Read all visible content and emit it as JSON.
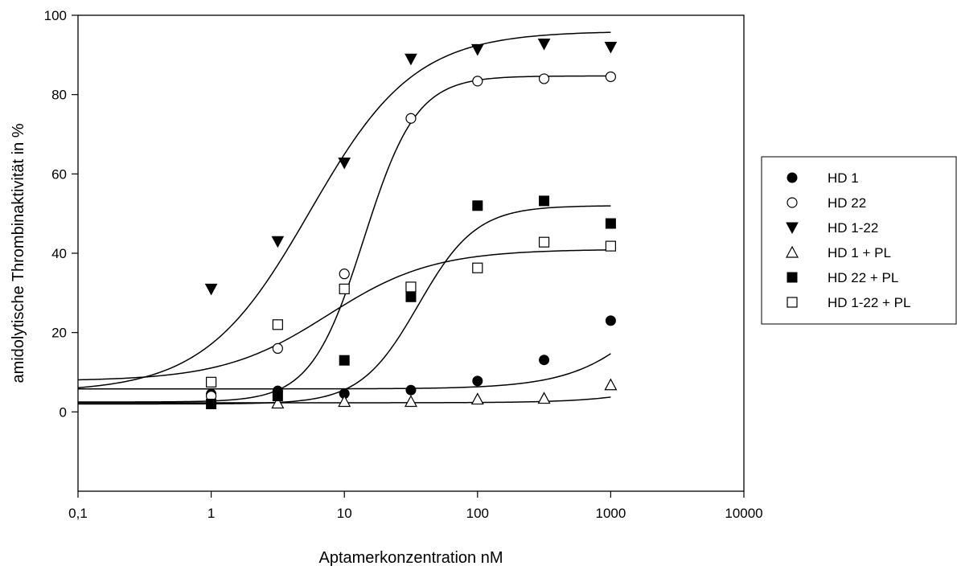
{
  "chart_data": {
    "type": "scatter",
    "xlabel": "Aptamerkonzentration nM",
    "ylabel": "amidolytische Thrombinaktivität in %",
    "xscale": "log",
    "xlim": [
      0.1,
      10000
    ],
    "ylim": [
      -20,
      100
    ],
    "xticks": [
      0.1,
      1,
      10,
      100,
      1000,
      10000
    ],
    "xtick_labels": [
      "0,1",
      "1",
      "10",
      "100",
      "1000",
      "10000"
    ],
    "yticks": [
      0,
      20,
      40,
      60,
      80,
      100
    ],
    "ytick_labels": [
      "0",
      "20",
      "40",
      "60",
      "80",
      "100"
    ],
    "grid": false,
    "legend_position": "right",
    "series": [
      {
        "name": "HD 1",
        "marker": "filled-circle",
        "x": [
          1,
          3.16,
          10,
          31.6,
          100,
          316,
          1000
        ],
        "y": [
          4.5,
          5.3,
          4.6,
          5.5,
          7.8,
          13.1,
          23.0
        ],
        "fit": {
          "bottom": 5.8,
          "top": 60,
          "ec50": 3500,
          "hill": 1.3
        }
      },
      {
        "name": "HD 22",
        "marker": "open-circle",
        "x": [
          1,
          3.16,
          10,
          31.6,
          100,
          316,
          1000
        ],
        "y": [
          4.0,
          16.0,
          34.8,
          74.0,
          83.4,
          84.0,
          84.5
        ],
        "fit": {
          "bottom": 2.5,
          "top": 84.7,
          "ec50": 14,
          "hill": 2.2
        }
      },
      {
        "name": "HD 1-22",
        "marker": "filled-triangle-down",
        "x": [
          1,
          3.16,
          10,
          31.6,
          100,
          316,
          1000
        ],
        "y": [
          31.0,
          43.0,
          62.8,
          89.0,
          91.4,
          92.8,
          92.0
        ],
        "fit": {
          "bottom": 5.0,
          "top": 96,
          "ec50": 5.5,
          "hill": 1.1
        }
      },
      {
        "name": "HD 1 + PL",
        "marker": "open-triangle-up",
        "x": [
          3.16,
          10,
          31.6,
          100,
          316,
          1000
        ],
        "y": [
          2.2,
          2.6,
          2.6,
          3.2,
          3.4,
          6.8
        ],
        "fit": {
          "bottom": 2.3,
          "top": 40,
          "ec50": 12000,
          "hill": 1.3
        }
      },
      {
        "name": "HD 22 + PL",
        "marker": "filled-square",
        "x": [
          1,
          3.16,
          10,
          31.6,
          100,
          316,
          1000
        ],
        "y": [
          2.0,
          4.0,
          13.0,
          29.0,
          52.0,
          53.2,
          47.5
        ],
        "fit": {
          "bottom": 2.0,
          "top": 52.0,
          "ec50": 36,
          "hill": 2.0
        }
      },
      {
        "name": "HD 1-22 + PL",
        "marker": "open-square",
        "x": [
          1,
          3.16,
          10,
          31.6,
          100,
          316,
          1000
        ],
        "y": [
          7.5,
          22.0,
          31.0,
          31.5,
          36.3,
          42.8,
          41.8
        ],
        "fit": {
          "bottom": 7.8,
          "top": 41.0,
          "ec50": 7.5,
          "hill": 1.1
        }
      }
    ]
  }
}
